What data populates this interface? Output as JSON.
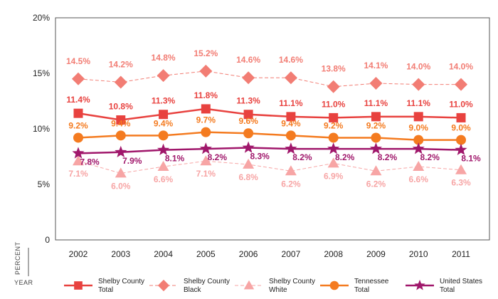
{
  "chart_data": {
    "type": "line",
    "title": "",
    "xlabel": "YEAR",
    "ylabel": "PERCENT",
    "ylim": [
      0,
      20
    ],
    "yticks": [
      "0",
      "5%",
      "10%",
      "15%",
      "20%"
    ],
    "ytick_values": [
      0,
      5,
      10,
      15,
      20
    ],
    "categories": [
      "2002",
      "2003",
      "2004",
      "2005",
      "2006",
      "2007",
      "2008",
      "2009",
      "2010",
      "2011"
    ],
    "grid": false,
    "legend_position": "bottom",
    "series": [
      {
        "name": "Shelby County Total",
        "legend_line1": "Shelby County",
        "legend_line2": "Total",
        "marker": "square",
        "line_style": "solid",
        "color": "#E8423F",
        "values": [
          11.4,
          10.8,
          11.3,
          11.8,
          11.3,
          11.1,
          11.0,
          11.1,
          11.1,
          11.0
        ],
        "labels": [
          "11.4%",
          "10.8%",
          "11.3%",
          "11.8%",
          "11.3%",
          "11.1%",
          "11.0%",
          "11.1%",
          "11.1%",
          "11.0%"
        ]
      },
      {
        "name": "Shelby County Black",
        "legend_line1": "Shelby County",
        "legend_line2": "Black",
        "marker": "diamond",
        "line_style": "dashed",
        "color": "#F27D74",
        "values": [
          14.5,
          14.2,
          14.8,
          15.2,
          14.6,
          14.6,
          13.8,
          14.1,
          14.0,
          14.0
        ],
        "labels": [
          "14.5%",
          "14.2%",
          "14.8%",
          "15.2%",
          "14.6%",
          "14.6%",
          "13.8%",
          "14.1%",
          "14.0%",
          "14.0%"
        ]
      },
      {
        "name": "Shelby County White",
        "legend_line1": "Shelby County",
        "legend_line2": "White",
        "marker": "triangle",
        "line_style": "dashed",
        "color": "#F7A5A5",
        "values": [
          7.1,
          6.0,
          6.6,
          7.1,
          6.8,
          6.2,
          6.9,
          6.2,
          6.6,
          6.3
        ],
        "labels": [
          "7.1%",
          "6.0%",
          "6.6%",
          "7.1%",
          "6.8%",
          "6.2%",
          "6.9%",
          "6.2%",
          "6.6%",
          "6.3%"
        ]
      },
      {
        "name": "Tennessee Total",
        "legend_line1": "Tennessee",
        "legend_line2": "Total",
        "marker": "circle",
        "line_style": "solid",
        "color": "#F47B20",
        "values": [
          9.2,
          9.4,
          9.4,
          9.7,
          9.6,
          9.4,
          9.2,
          9.2,
          9.0,
          9.0
        ],
        "labels": [
          "9.2%",
          "9.4%",
          "9.4%",
          "9.7%",
          "9.6%",
          "9.4%",
          "9.2%",
          "9.2%",
          "9.0%",
          "9.0%"
        ]
      },
      {
        "name": "United States Total",
        "legend_line1": "United States",
        "legend_line2": "Total",
        "marker": "star",
        "line_style": "solid",
        "color": "#A0176B",
        "values": [
          7.8,
          7.9,
          8.1,
          8.2,
          8.3,
          8.2,
          8.2,
          8.2,
          8.2,
          8.1
        ],
        "labels": [
          "7.8%",
          "7.9%",
          "8.1%",
          "8.2%",
          "8.3%",
          "8.2%",
          "8.2%",
          "8.2%",
          "8.2%",
          "8.1%"
        ]
      }
    ]
  }
}
